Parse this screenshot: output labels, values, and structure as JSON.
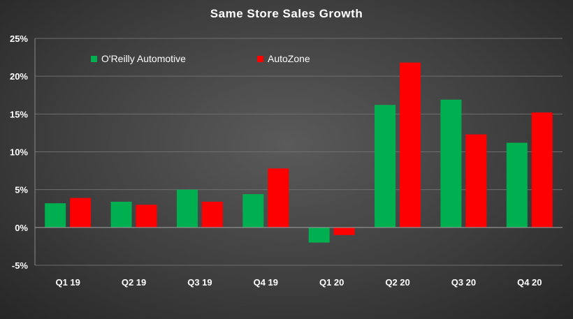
{
  "chart_data": {
    "type": "bar",
    "title": "Same Store Sales Growth",
    "categories": [
      "Q1 19",
      "Q2 19",
      "Q3 19",
      "Q4 19",
      "Q1 20",
      "Q2 20",
      "Q3 20",
      "Q4 20"
    ],
    "series": [
      {
        "name": "O'Reilly Automotive",
        "color": "#00b050",
        "values": [
          3.2,
          3.4,
          5.0,
          4.4,
          -2.0,
          16.2,
          16.9,
          11.2
        ]
      },
      {
        "name": "AutoZone",
        "color": "#ff0000",
        "values": [
          3.9,
          3.0,
          3.4,
          7.8,
          -1.0,
          21.8,
          12.3,
          15.2
        ]
      }
    ],
    "ylim": [
      -5,
      25
    ],
    "yticks": [
      -5,
      0,
      5,
      10,
      15,
      20,
      25
    ],
    "ytick_labels": [
      "-5%",
      "0%",
      "5%",
      "10%",
      "15%",
      "20%",
      "25%"
    ],
    "xlabel": "",
    "ylabel": "",
    "grid": true,
    "legend_position": "top-left"
  }
}
